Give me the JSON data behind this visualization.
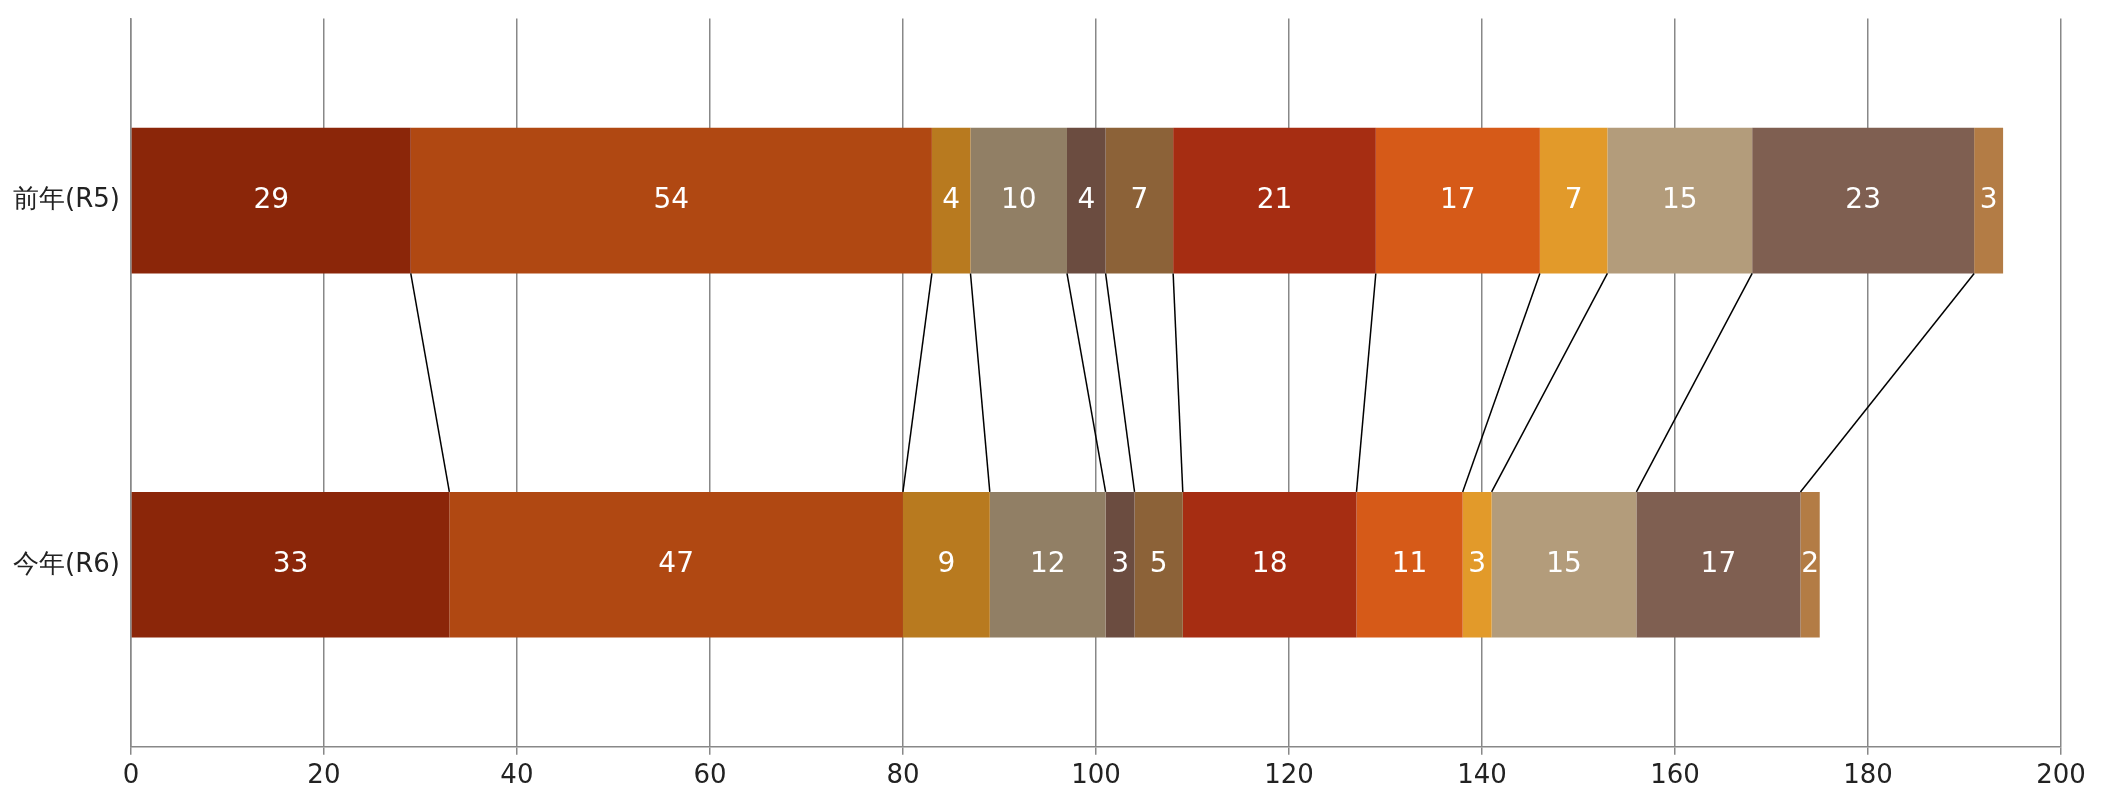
{
  "chart_data": {
    "type": "bar",
    "orientation": "horizontal",
    "stacked": true,
    "data_labels": true,
    "grid": "x",
    "legend": false,
    "categories": [
      "前年(R5)",
      "今年(R6)"
    ],
    "xlim": [
      0,
      200
    ],
    "xticks": [
      0,
      20,
      40,
      60,
      80,
      100,
      120,
      140,
      160,
      180,
      200
    ],
    "series": [
      {
        "color": "#8b2609",
        "values": [
          29,
          33
        ]
      },
      {
        "color": "#b04812",
        "values": [
          54,
          47
        ]
      },
      {
        "color": "#b87a1f",
        "values": [
          4,
          9
        ]
      },
      {
        "color": "#917f65",
        "values": [
          10,
          12
        ]
      },
      {
        "color": "#6b4c40",
        "values": [
          4,
          3
        ]
      },
      {
        "color": "#8c6238",
        "values": [
          7,
          5
        ]
      },
      {
        "color": "#a62d12",
        "values": [
          21,
          18
        ]
      },
      {
        "color": "#d65a18",
        "values": [
          17,
          11
        ]
      },
      {
        "color": "#e29a2a",
        "values": [
          7,
          3
        ]
      },
      {
        "color": "#b39c7b",
        "values": [
          15,
          15
        ]
      },
      {
        "color": "#7f5f51",
        "values": [
          23,
          17
        ]
      },
      {
        "color": "#b37c45",
        "values": [
          3,
          2
        ]
      }
    ]
  }
}
